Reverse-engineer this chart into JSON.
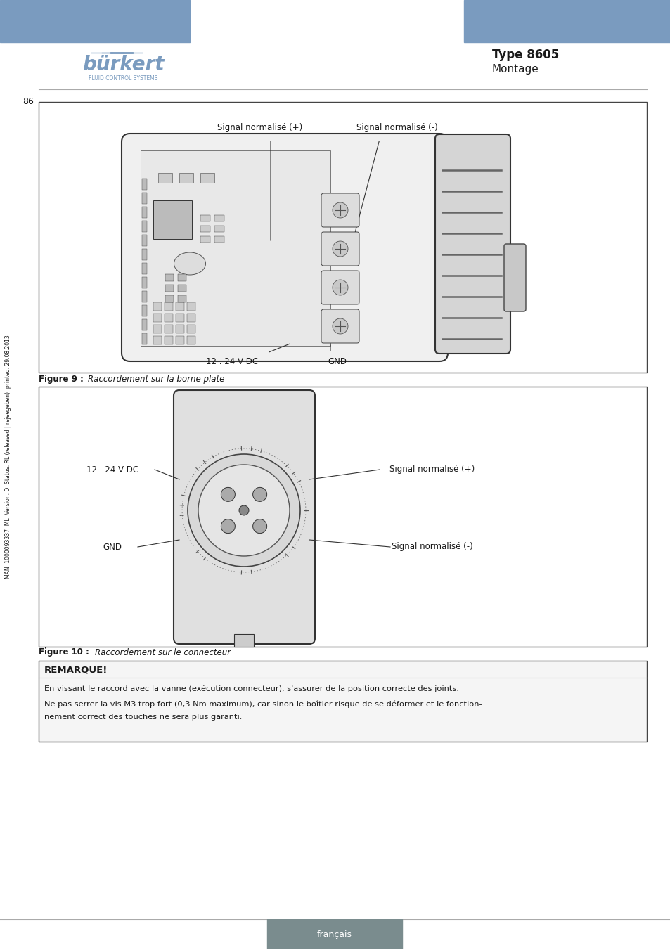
{
  "page_bg": "#ffffff",
  "header_blue": "#7a9bbf",
  "burkert_blue": "#7a9bbf",
  "type_label": "Type 8605",
  "section_label": "Montage",
  "page_number": "86",
  "footer_tab_color": "#7a8c8e",
  "footer_tab_text": "français",
  "fig1_caption_bold": "Figure 9 :",
  "fig1_caption_text": "Raccordement sur la borne plate",
  "fig2_caption_bold": "Figure 10 :",
  "fig2_caption_text": "Raccordement sur le connecteur",
  "fig1_labels": [
    "Signal normalisé (+)",
    "Signal normalisé (-)",
    "12 . 24 V DC",
    "GND"
  ],
  "fig2_labels": [
    "12 . 24 V DC",
    "Signal normalisé (+)",
    "GND",
    "Signal normalisé (-)"
  ],
  "note_title": "REMARQUE!",
  "note_line1": "En vissant le raccord avec la vanne (exécution connecteur), s'assurer de la position correcte des joints.",
  "note_line2": "Ne pas serrer la vis M3 trop fort (0,3 Nm maximum), car sinon le boîtier risque de se déformer et le fonction-",
  "note_line3": "nement correct des touches ne sera plus garanti.",
  "sidebar_text": "MAN  1000093337  ML  Version: D  Status: RL (released | rejeegeben)  printed: 29.08.2013",
  "text_dark": "#1a1a1a",
  "text_gray": "#555555",
  "box_outline": "#333333",
  "line_gray": "#aaaaaa"
}
